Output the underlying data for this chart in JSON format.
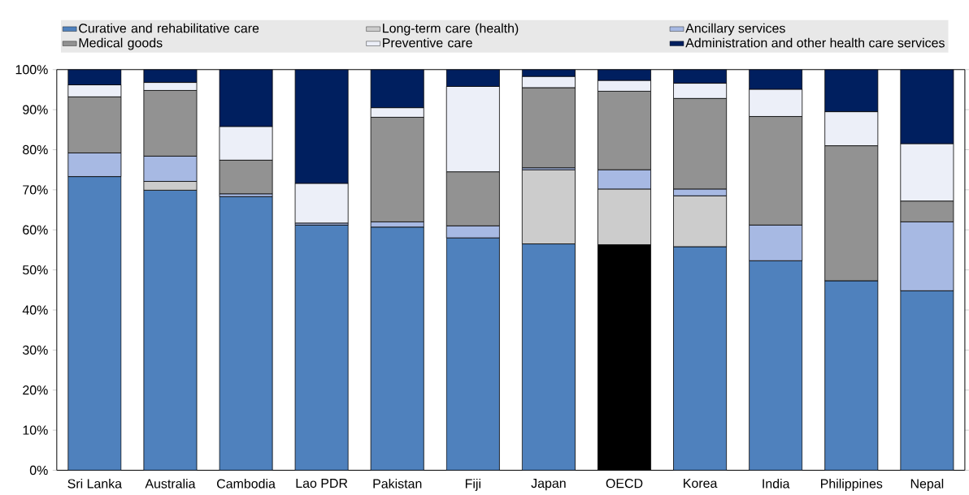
{
  "chart_data": {
    "type": "bar",
    "stacked": true,
    "legend": "top",
    "categories": [
      "Sri Lanka",
      "Australia",
      "Cambodia",
      "Lao PDR",
      "Pakistan",
      "Fiji",
      "Japan",
      "OECD",
      "Korea",
      "India",
      "Philippines",
      "Nepal"
    ],
    "ylim": [
      0,
      100
    ],
    "yticks": [
      {
        "value": 0,
        "label": "0%"
      },
      {
        "value": 10,
        "label": "10%"
      },
      {
        "value": 20,
        "label": "20%"
      },
      {
        "value": 30,
        "label": "30%"
      },
      {
        "value": 40,
        "label": "40%"
      },
      {
        "value": 50,
        "label": "50%"
      },
      {
        "value": 60,
        "label": "60%"
      },
      {
        "value": 70,
        "label": "70%"
      },
      {
        "value": 80,
        "label": "80%"
      },
      {
        "value": 90,
        "label": "90%"
      },
      {
        "value": 100,
        "label": "100%"
      }
    ],
    "series": [
      {
        "name": "Curative and rehabilitative care",
        "color": "#4f81bd",
        "colors": [
          "#4f81bd",
          "#4f81bd",
          "#4f81bd",
          "#4f81bd",
          "#4f81bd",
          "#4f81bd",
          "#4f81bd",
          "#000000",
          "#4f81bd",
          "#4f81bd",
          "#4f81bd",
          "#4f81bd"
        ],
        "values": [
          73.3,
          69.9,
          68.3,
          61.2,
          60.7,
          58.0,
          56.5,
          56.3,
          55.8,
          52.3,
          47.3,
          44.8
        ]
      },
      {
        "name": "Long-term care (health)",
        "color": "#cccccc",
        "values": [
          0,
          2.2,
          0,
          0,
          0,
          0,
          18.5,
          13.9,
          12.7,
          0,
          0,
          0
        ]
      },
      {
        "name": "Ancillary services",
        "color": "#a7b9e3",
        "values": [
          5.9,
          6.3,
          0.7,
          0.5,
          1.3,
          3.0,
          0.5,
          4.8,
          1.7,
          8.9,
          null,
          17.2
        ]
      },
      {
        "name": "Medical goods",
        "color": "#929292",
        "values": [
          14.0,
          16.4,
          8.4,
          0,
          26.1,
          13.5,
          20.0,
          19.6,
          22.6,
          27.1,
          33.7,
          5.2
        ]
      },
      {
        "name": "Preventive care",
        "color": "#eceff8",
        "values": [
          3.0,
          2.0,
          8.4,
          9.9,
          2.4,
          21.3,
          2.8,
          2.7,
          3.8,
          6.8,
          8.5,
          14.3
        ]
      },
      {
        "name": "Administration and other health care services",
        "color": "#001f5f",
        "values": [
          3.8,
          3.2,
          14.2,
          28.4,
          9.5,
          4.2,
          1.7,
          2.7,
          3.4,
          4.9,
          10.5,
          18.5
        ]
      }
    ]
  }
}
